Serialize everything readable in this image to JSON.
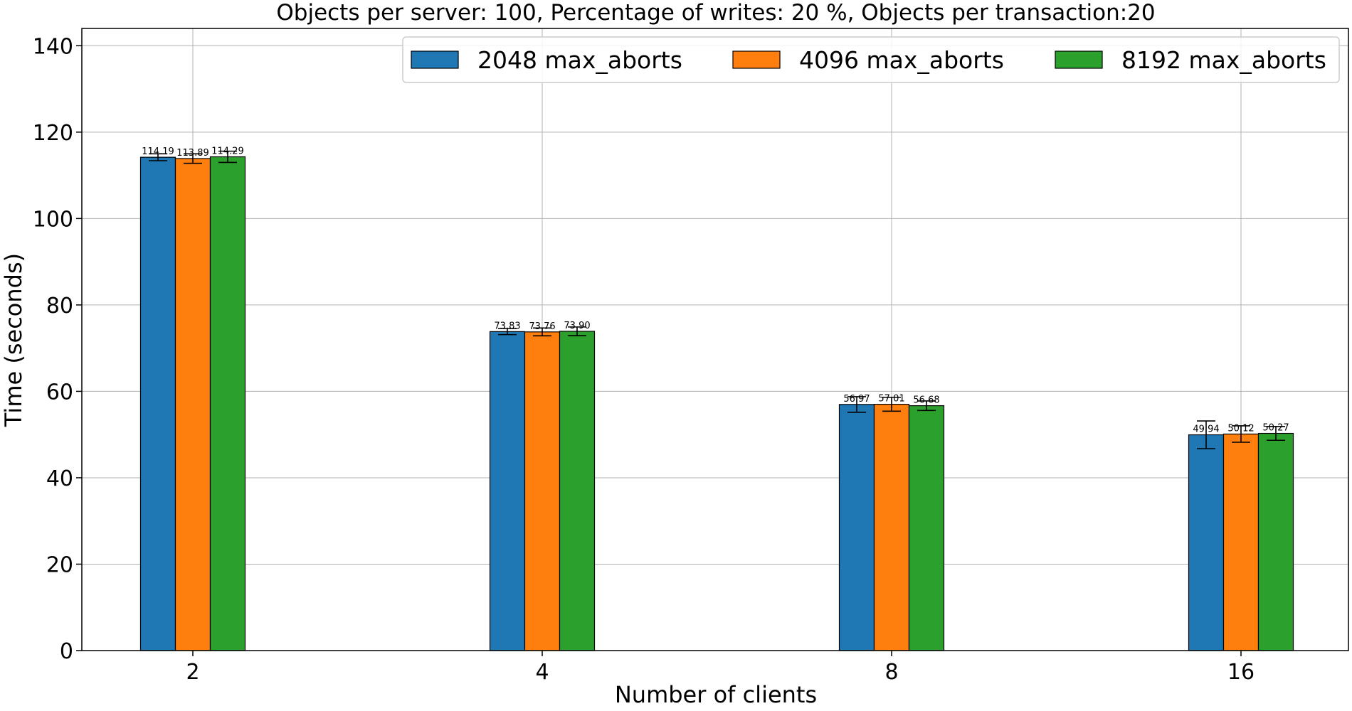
{
  "chart_data": {
    "type": "bar",
    "title": "Objects per server: 100, Percentage of writes: 20 %, Objects per transaction:20",
    "xlabel": "Number of clients",
    "ylabel": "Time (seconds)",
    "categories": [
      "2",
      "4",
      "8",
      "16"
    ],
    "ylim": [
      0,
      144
    ],
    "yticks": [
      0,
      20,
      40,
      60,
      80,
      100,
      120,
      140
    ],
    "grid": true,
    "legend_position": "top-right",
    "series": [
      {
        "name": "2048 max_aborts",
        "color": "#1f77b4",
        "values": [
          114.19,
          73.83,
          56.97,
          49.94
        ],
        "errors": [
          0.8,
          0.7,
          1.8,
          3.2
        ],
        "labels": [
          "114.19",
          "73.83",
          "56.97",
          "49.94"
        ]
      },
      {
        "name": "4096 max_aborts",
        "color": "#ff7f0e",
        "values": [
          113.89,
          73.76,
          57.01,
          50.12
        ],
        "errors": [
          1.1,
          0.9,
          1.6,
          1.9
        ],
        "labels": [
          "113.89",
          "73.76",
          "57.01",
          "50.12"
        ]
      },
      {
        "name": "8192 max_aborts",
        "color": "#2ca02c",
        "values": [
          114.29,
          73.9,
          56.68,
          50.27
        ],
        "errors": [
          1.3,
          1.0,
          1.1,
          1.6
        ],
        "labels": [
          "114.29",
          "73.90",
          "56.68",
          "50.27"
        ]
      }
    ]
  }
}
